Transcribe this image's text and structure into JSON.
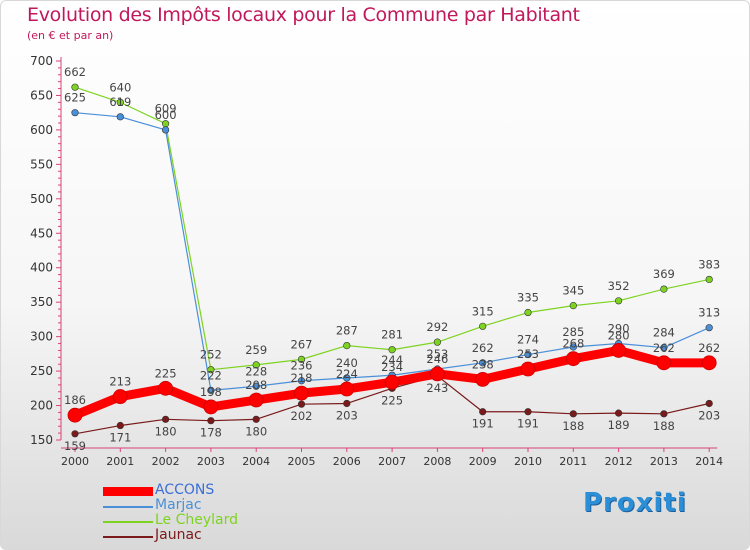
{
  "header": {
    "title": "Evolution des Impôts locaux pour la Commune par Habitant",
    "subtitle": "(en € et par an)"
  },
  "chart_data": {
    "type": "line",
    "title": "Evolution des Impôts locaux pour la Commune par Habitant",
    "ylabel": "(en € et par an)",
    "xlabel": "",
    "ylim": [
      150,
      700
    ],
    "yticks": [
      150,
      200,
      250,
      300,
      350,
      400,
      450,
      500,
      550,
      600,
      650,
      700
    ],
    "grid": false,
    "categories": [
      "2000",
      "2001",
      "2002",
      "2003",
      "2004",
      "2005",
      "2006",
      "2007",
      "2008",
      "2009",
      "2010",
      "2011",
      "2012",
      "2013",
      "2014"
    ],
    "series": [
      {
        "name": "ACCONS",
        "color": "#ff0000",
        "values": [
          186,
          213,
          225,
          198,
          208,
          218,
          224,
          234,
          246,
          238,
          253,
          268,
          280,
          262,
          262
        ]
      },
      {
        "name": "Marjac",
        "color": "#4a90d9",
        "values": [
          625,
          619,
          600,
          222,
          228,
          236,
          240,
          244,
          253,
          262,
          274,
          285,
          290,
          284,
          313
        ]
      },
      {
        "name": "Le Cheylard",
        "color": "#7ed321",
        "values": [
          662,
          640,
          609,
          252,
          259,
          267,
          287,
          281,
          292,
          315,
          335,
          345,
          352,
          369,
          383
        ]
      },
      {
        "name": "Jaunac",
        "color": "#7a1a1a",
        "values": [
          159,
          171,
          180,
          178,
          180,
          202,
          203,
          225,
          243,
          191,
          191,
          188,
          189,
          188,
          203
        ]
      }
    ],
    "legend_position": "bottom-left"
  },
  "logo": {
    "text": "Proxiti"
  }
}
